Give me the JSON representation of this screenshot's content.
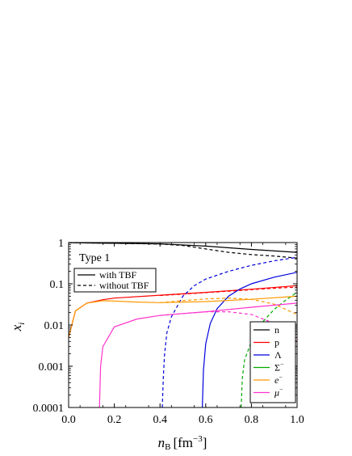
{
  "chart_data": {
    "type": "line",
    "title": "",
    "annotation": "Type 1",
    "xlabel_base": "n",
    "xlabel_sub": "B",
    "xlabel_unit": "[fm",
    "xlabel_exp": "−3",
    "xlabel_close": "]",
    "ylabel_base": "x",
    "ylabel_sub": "i",
    "xlim": [
      0.0,
      1.0
    ],
    "ylim": [
      0.0001,
      1
    ],
    "yscale": "log",
    "xticks": [
      "0.0",
      "0.2",
      "0.4",
      "0.6",
      "0.8",
      "1.0"
    ],
    "yticks": [
      "0.0001",
      "0.001",
      "0.01",
      "0.1",
      "1"
    ],
    "style_legend": [
      {
        "label": "with TBF",
        "dash": "solid"
      },
      {
        "label": "without TBF",
        "dash": "dashed"
      }
    ],
    "species_legend": [
      {
        "label": "n",
        "sup": "",
        "color": "#000000"
      },
      {
        "label": "p",
        "sup": "",
        "color": "#ff0000"
      },
      {
        "label": "Λ",
        "sup": "",
        "color": "#0000dd"
      },
      {
        "label": "Σ",
        "sup": "−",
        "color": "#00aa00"
      },
      {
        "label": "e",
        "sup": "−",
        "color": "#ff9900"
      },
      {
        "label": "μ",
        "sup": "−",
        "color": "#ff33cc"
      }
    ],
    "series": [
      {
        "name": "n",
        "dash": "solid",
        "color": "#000000",
        "x": [
          0.0,
          0.2,
          0.4,
          0.6,
          0.8,
          1.0
        ],
        "y": [
          0.99,
          0.96,
          0.93,
          0.82,
          0.68,
          0.58
        ]
      },
      {
        "name": "n",
        "dash": "dashed",
        "color": "#000000",
        "x": [
          0.0,
          0.2,
          0.4,
          0.5,
          0.6,
          0.7,
          0.8,
          0.9,
          1.0
        ],
        "y": [
          0.99,
          0.96,
          0.92,
          0.85,
          0.7,
          0.58,
          0.51,
          0.47,
          0.42
        ]
      },
      {
        "name": "p",
        "dash": "solid",
        "color": "#ff0000",
        "x": [
          0.0,
          0.03,
          0.08,
          0.15,
          0.2,
          0.4,
          0.6,
          0.8,
          1.0
        ],
        "y": [
          0.005,
          0.022,
          0.034,
          0.041,
          0.045,
          0.053,
          0.062,
          0.074,
          0.09
        ]
      },
      {
        "name": "p",
        "dash": "dashed",
        "color": "#ff0000",
        "x": [
          0.4,
          0.5,
          0.6,
          0.7,
          0.8,
          0.9,
          1.0
        ],
        "y": [
          0.052,
          0.056,
          0.061,
          0.066,
          0.072,
          0.078,
          0.083
        ]
      },
      {
        "name": "Λ",
        "dash": "solid",
        "color": "#0000dd",
        "x": [
          0.585,
          0.59,
          0.6,
          0.62,
          0.65,
          0.7,
          0.75,
          0.8,
          0.9,
          1.0
        ],
        "y": [
          0.0001,
          0.0008,
          0.0035,
          0.011,
          0.025,
          0.05,
          0.075,
          0.1,
          0.145,
          0.19
        ]
      },
      {
        "name": "Λ",
        "dash": "dashed",
        "color": "#0000dd",
        "x": [
          0.41,
          0.415,
          0.42,
          0.43,
          0.45,
          0.5,
          0.55,
          0.6,
          0.7,
          0.8,
          0.9,
          1.0
        ],
        "y": [
          0.0001,
          0.0006,
          0.002,
          0.0065,
          0.016,
          0.05,
          0.09,
          0.13,
          0.2,
          0.28,
          0.36,
          0.44
        ]
      },
      {
        "name": "Σ−",
        "dash": "dashed",
        "color": "#00aa00",
        "x": [
          0.755,
          0.76,
          0.77,
          0.8,
          0.85,
          0.9,
          0.95,
          1.0
        ],
        "y": [
          0.0001,
          0.0005,
          0.0014,
          0.004,
          0.012,
          0.024,
          0.04,
          0.062
        ]
      },
      {
        "name": "e−",
        "dash": "solid",
        "color": "#ff9900",
        "x": [
          0.0,
          0.03,
          0.08,
          0.15,
          0.2,
          0.3,
          0.4,
          0.6,
          0.8,
          1.0
        ],
        "y": [
          0.005,
          0.022,
          0.034,
          0.039,
          0.038,
          0.036,
          0.035,
          0.037,
          0.042,
          0.05
        ]
      },
      {
        "name": "e−",
        "dash": "dashed",
        "color": "#ff9900",
        "x": [
          0.4,
          0.5,
          0.6,
          0.7,
          0.8,
          0.9,
          1.0
        ],
        "y": [
          0.035,
          0.039,
          0.043,
          0.045,
          0.042,
          0.032,
          0.018
        ]
      },
      {
        "name": "μ−",
        "dash": "solid",
        "color": "#ff33cc",
        "x": [
          0.135,
          0.14,
          0.15,
          0.2,
          0.3,
          0.4,
          0.5,
          0.6,
          0.8,
          1.0
        ],
        "y": [
          0.0001,
          0.001,
          0.003,
          0.009,
          0.014,
          0.017,
          0.019,
          0.021,
          0.027,
          0.034
        ]
      },
      {
        "name": "μ−",
        "dash": "dashed",
        "color": "#ff33cc",
        "x": [
          0.4,
          0.5,
          0.6,
          0.7,
          0.8,
          0.9,
          1.0
        ],
        "y": [
          0.017,
          0.019,
          0.021,
          0.021,
          0.018,
          0.011,
          0.004
        ]
      }
    ]
  }
}
